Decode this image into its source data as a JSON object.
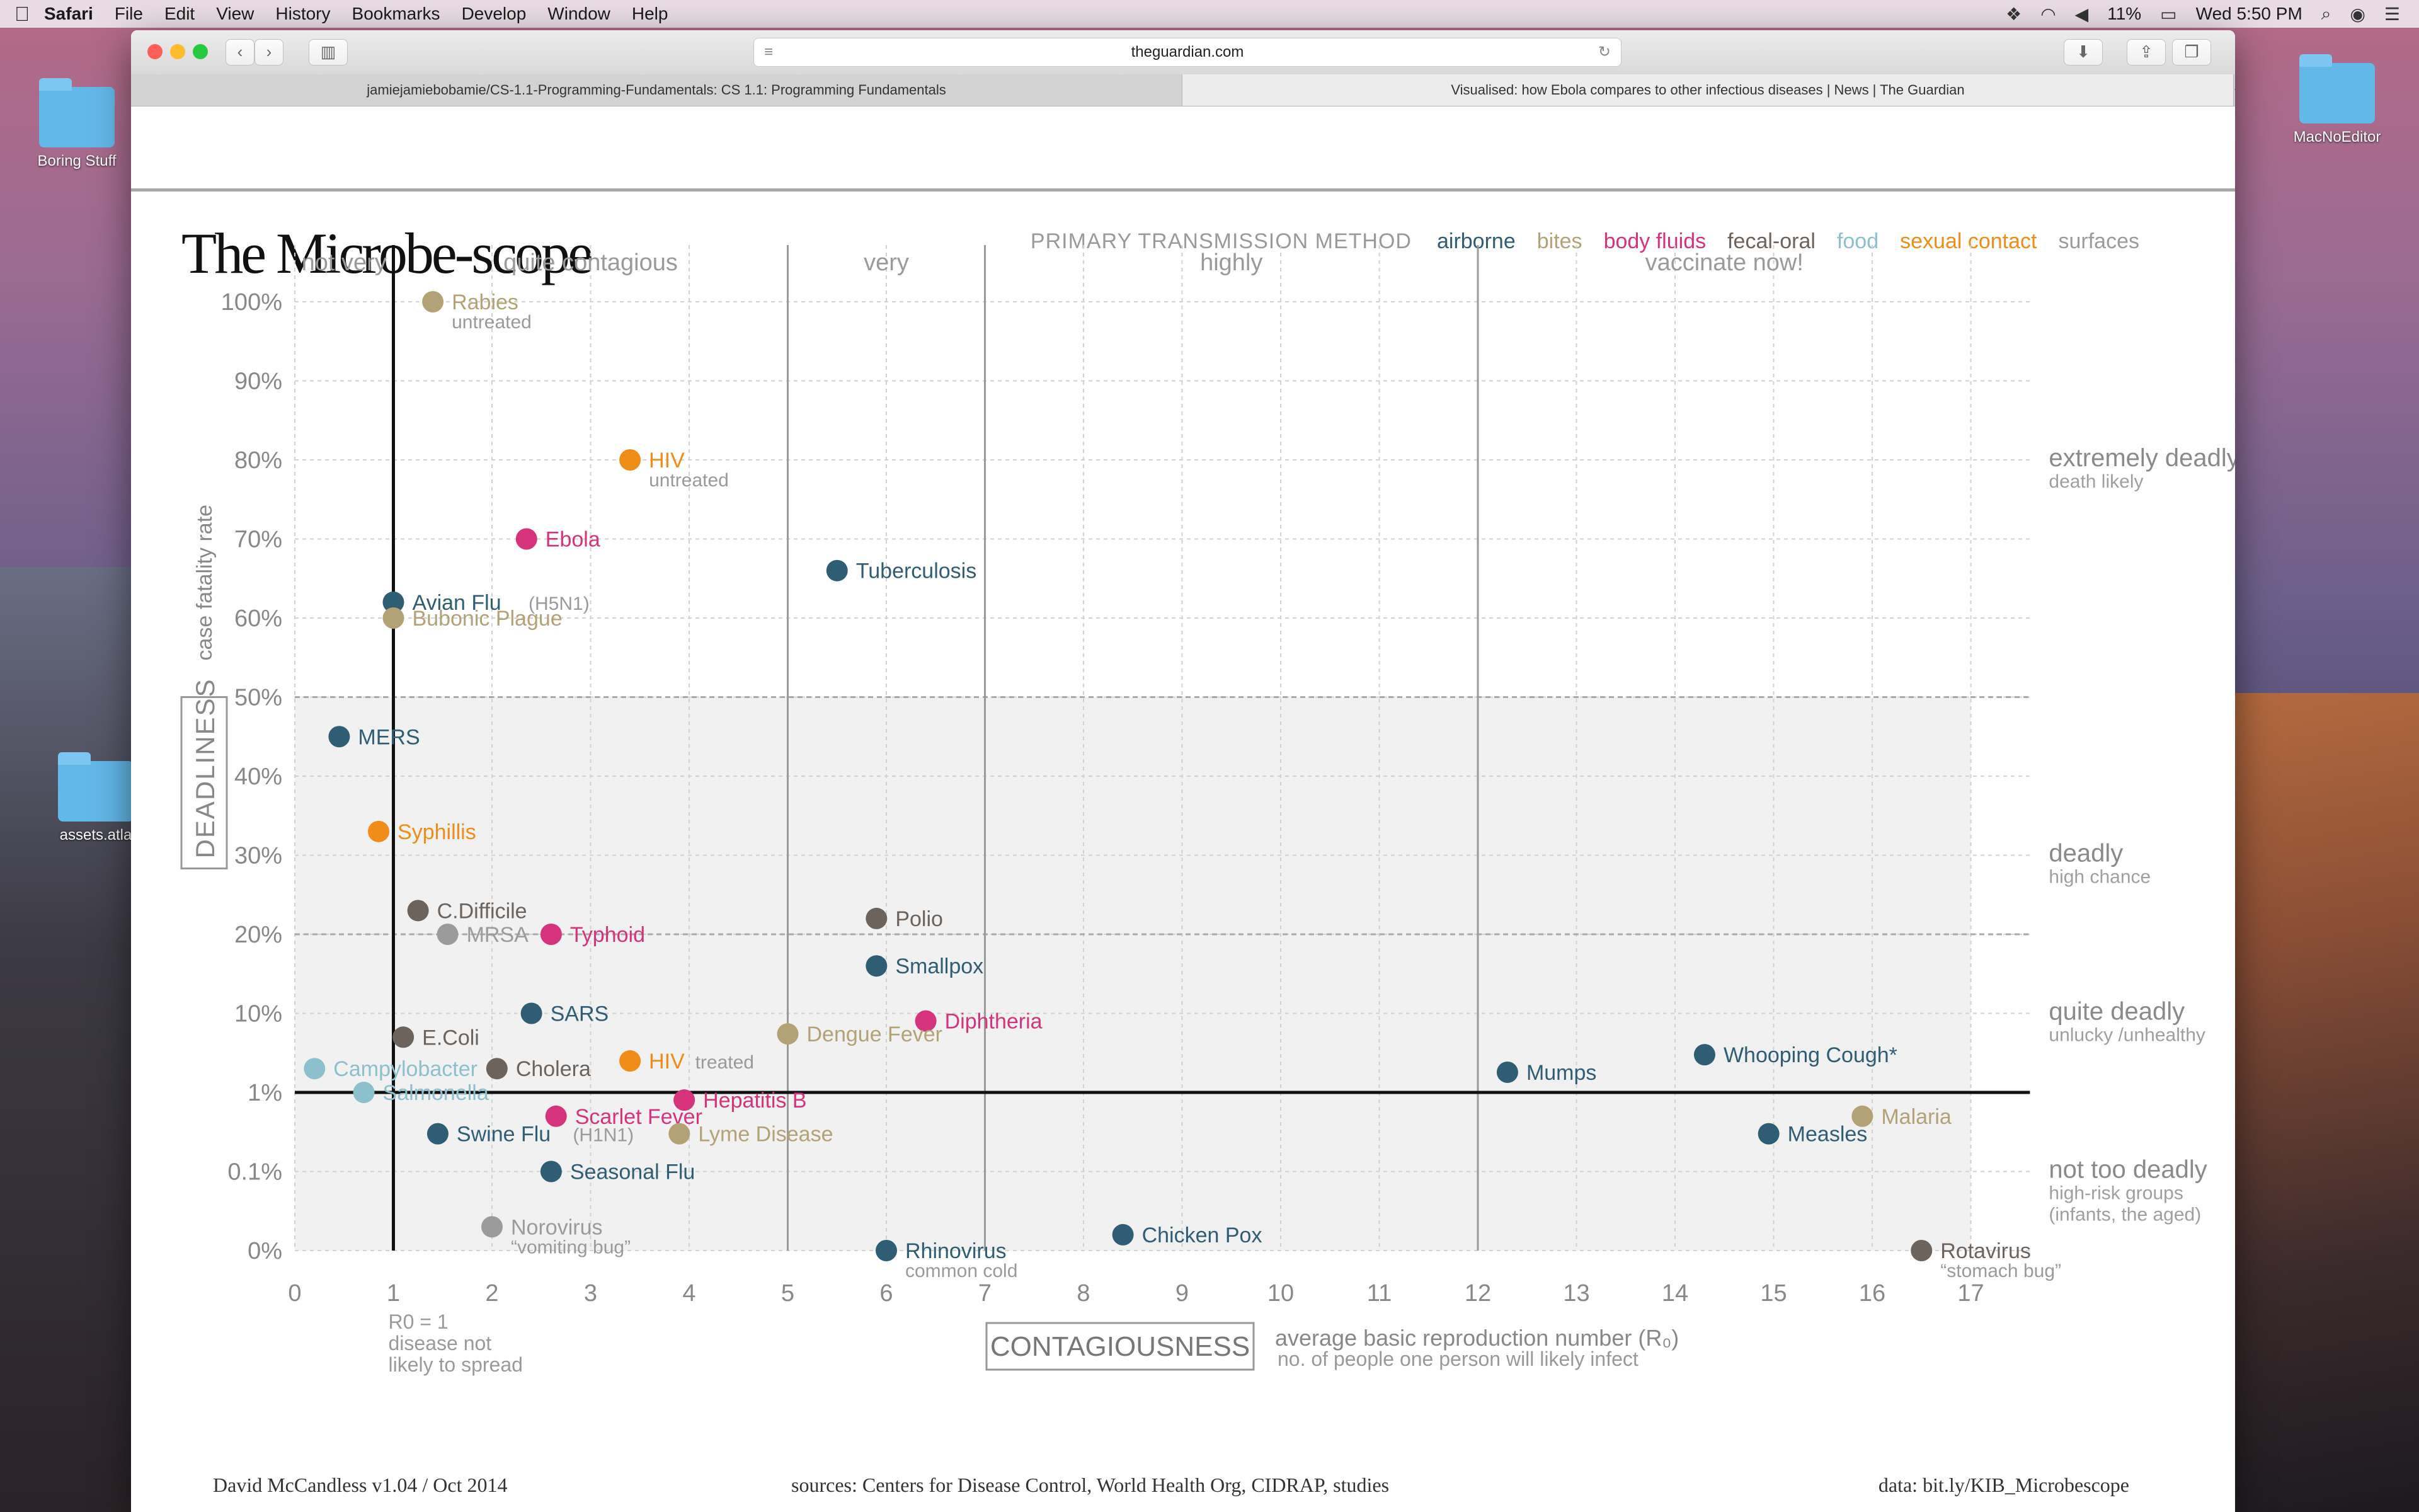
{
  "menubar": {
    "app": "Safari",
    "items": [
      "File",
      "Edit",
      "View",
      "History",
      "Bookmarks",
      "Develop",
      "Window",
      "Help"
    ],
    "battery": "11%",
    "clock": "Wed 5:50 PM"
  },
  "desktop": {
    "icons": [
      "Boring Stuff",
      "assets.atla",
      "MacNoEditor"
    ]
  },
  "browser": {
    "url": "theguardian.com",
    "tabs": [
      "jamiejamiebobamie/CS-1.1-Programming-Fundamentals: CS 1.1: Programming Fundamentals",
      "Visualised: how Ebola compares to other infectious diseases | News | The Guardian"
    ],
    "new_tab": "+"
  },
  "page": {
    "title": "The Microbe-scope",
    "legend_header": "PRIMARY TRANSMISSION METHOD",
    "footer_left": "David McCandless v1.04 / Oct 2014",
    "footer_mid": "sources: Centers for Disease Control, World Health Org, CIDRAP, studies",
    "footer_right": "data: bit.ly/KIB_Microbescope"
  },
  "chart_data": {
    "type": "scatter",
    "title": "The Microbe-scope",
    "xlabel": "CONTAGIOUSNESS",
    "xlabel_note": "average basic reproduction number (R₀)",
    "xlabel_sub": "no. of people one person will likely infect",
    "ylabel": "DEADLINESS",
    "ylabel_note": "case fatality rate",
    "xlim": [
      0,
      17
    ],
    "x_ticks": [
      "0",
      "1",
      "2",
      "3",
      "4",
      "5",
      "6",
      "7",
      "8",
      "9",
      "10",
      "11",
      "12",
      "13",
      "14",
      "15",
      "16",
      "17"
    ],
    "y_ticks": [
      "0%",
      "0.1%",
      "1%",
      "10%",
      "20%",
      "30%",
      "40%",
      "50%",
      "60%",
      "70%",
      "80%",
      "90%",
      "100%"
    ],
    "grid": true,
    "r0_note": [
      "R0 = 1",
      "disease not",
      "likely to spread"
    ],
    "zones": [
      {
        "label": "not very",
        "from": 0,
        "to": 1
      },
      {
        "label": "quite contagious",
        "from": 1,
        "to": 5
      },
      {
        "label": "very",
        "from": 5,
        "to": 7
      },
      {
        "label": "highly",
        "from": 7,
        "to": 12
      },
      {
        "label": "vaccinate now!",
        "from": 12,
        "to": 17
      }
    ],
    "deadliness_bands": [
      {
        "label": "extremely deadly",
        "sub": [
          "death likely"
        ],
        "at": "80%"
      },
      {
        "label": "deadly",
        "sub": [
          "high chance"
        ],
        "at": "30%"
      },
      {
        "label": "quite deadly",
        "sub": [
          "unlucky /unhealthy"
        ],
        "at": "10%"
      },
      {
        "label": "not too deadly",
        "sub": [
          "high-risk groups",
          "(infants, the aged)"
        ],
        "at": "0.1%"
      }
    ],
    "legend": [
      {
        "method": "airborne",
        "color": "#2f5d73"
      },
      {
        "method": "bites",
        "color": "#b3a276"
      },
      {
        "method": "body fluids",
        "color": "#d6337c"
      },
      {
        "method": "fecal-oral",
        "color": "#6d635d"
      },
      {
        "method": "food",
        "color": "#8cc0cd"
      },
      {
        "method": "sexual contact",
        "color": "#f08c18"
      },
      {
        "method": "surfaces",
        "color": "#9b9b9b"
      }
    ],
    "points": [
      {
        "name": "Rabies",
        "note": "untreated",
        "x": 1.4,
        "y": "100%",
        "method": "bites"
      },
      {
        "name": "HIV",
        "note": "untreated",
        "x": 3.4,
        "y": "80%",
        "method": "sexual contact"
      },
      {
        "name": "Ebola",
        "x": 2.35,
        "y": "70%",
        "method": "body fluids"
      },
      {
        "name": "Tuberculosis",
        "x": 5.5,
        "y": "66%",
        "method": "airborne"
      },
      {
        "name": "Avian Flu",
        "note": "(H5N1)",
        "x": 1.0,
        "y": "62%",
        "method": "airborne"
      },
      {
        "name": "Bubonic Plague",
        "x": 1.0,
        "y": "60%",
        "method": "bites"
      },
      {
        "name": "MERS",
        "x": 0.45,
        "y": "45%",
        "method": "airborne"
      },
      {
        "name": "Syphillis",
        "x": 0.85,
        "y": "33%",
        "method": "sexual contact"
      },
      {
        "name": "C.Difficile",
        "x": 1.25,
        "y": "23%",
        "method": "fecal-oral"
      },
      {
        "name": "MRSA",
        "x": 1.55,
        "y": "20%",
        "method": "surfaces"
      },
      {
        "name": "Typhoid",
        "x": 2.6,
        "y": "20%",
        "method": "body fluids"
      },
      {
        "name": "Polio",
        "x": 5.9,
        "y": "22%",
        "method": "fecal-oral"
      },
      {
        "name": "Smallpox",
        "x": 5.9,
        "y": "16%",
        "method": "airborne"
      },
      {
        "name": "SARS",
        "x": 2.4,
        "y": "10%",
        "method": "airborne"
      },
      {
        "name": "Diphtheria",
        "x": 6.4,
        "y": "8%",
        "method": "body fluids"
      },
      {
        "name": "E.Coli",
        "x": 1.1,
        "y": "5%",
        "method": "fecal-oral"
      },
      {
        "name": "Dengue Fever",
        "x": 5.0,
        "y": "5.5%",
        "method": "bites"
      },
      {
        "name": "HIV",
        "note": "treated",
        "x": 3.4,
        "y": "2.5%",
        "method": "sexual contact"
      },
      {
        "name": "Campylobacter",
        "x": 0.2,
        "y": "2%",
        "method": "food"
      },
      {
        "name": "Cholera",
        "x": 2.05,
        "y": "2%",
        "method": "fecal-oral"
      },
      {
        "name": "Salmonella",
        "x": 0.7,
        "y": "1%",
        "method": "food"
      },
      {
        "name": "Mumps",
        "x": 12.3,
        "y": "1.8%",
        "method": "airborne"
      },
      {
        "name": "Whooping Cough*",
        "x": 14.3,
        "y": "3%",
        "method": "airborne"
      },
      {
        "name": "Hepatitis B",
        "x": 3.95,
        "y": "0.8%",
        "method": "body fluids"
      },
      {
        "name": "Scarlet Fever",
        "x": 2.65,
        "y": "0.5%",
        "method": "body fluids"
      },
      {
        "name": "Swine Flu",
        "note": "(H1N1)",
        "x": 1.45,
        "y": "0.3%",
        "method": "airborne"
      },
      {
        "name": "Lyme Disease",
        "x": 3.9,
        "y": "0.3%",
        "method": "bites"
      },
      {
        "name": "Seasonal Flu",
        "x": 2.6,
        "y": "0.1%",
        "method": "airborne"
      },
      {
        "name": "Measles",
        "x": 14.95,
        "y": "0.3%",
        "method": "airborne"
      },
      {
        "name": "Malaria",
        "x": 15.9,
        "y": "0.5%",
        "method": "bites"
      },
      {
        "name": "Norovirus",
        "note": "“vomiting bug”",
        "x": 2.0,
        "y": "0.03%",
        "method": "surfaces"
      },
      {
        "name": "Chicken Pox",
        "x": 8.4,
        "y": "0.02%",
        "method": "airborne"
      },
      {
        "name": "Rhinovirus",
        "note": "common cold",
        "x": 6.0,
        "y": "0%",
        "method": "airborne"
      },
      {
        "name": "Rotavirus",
        "note": "“stomach bug”",
        "x": 16.5,
        "y": "0%",
        "method": "fecal-oral"
      }
    ]
  }
}
